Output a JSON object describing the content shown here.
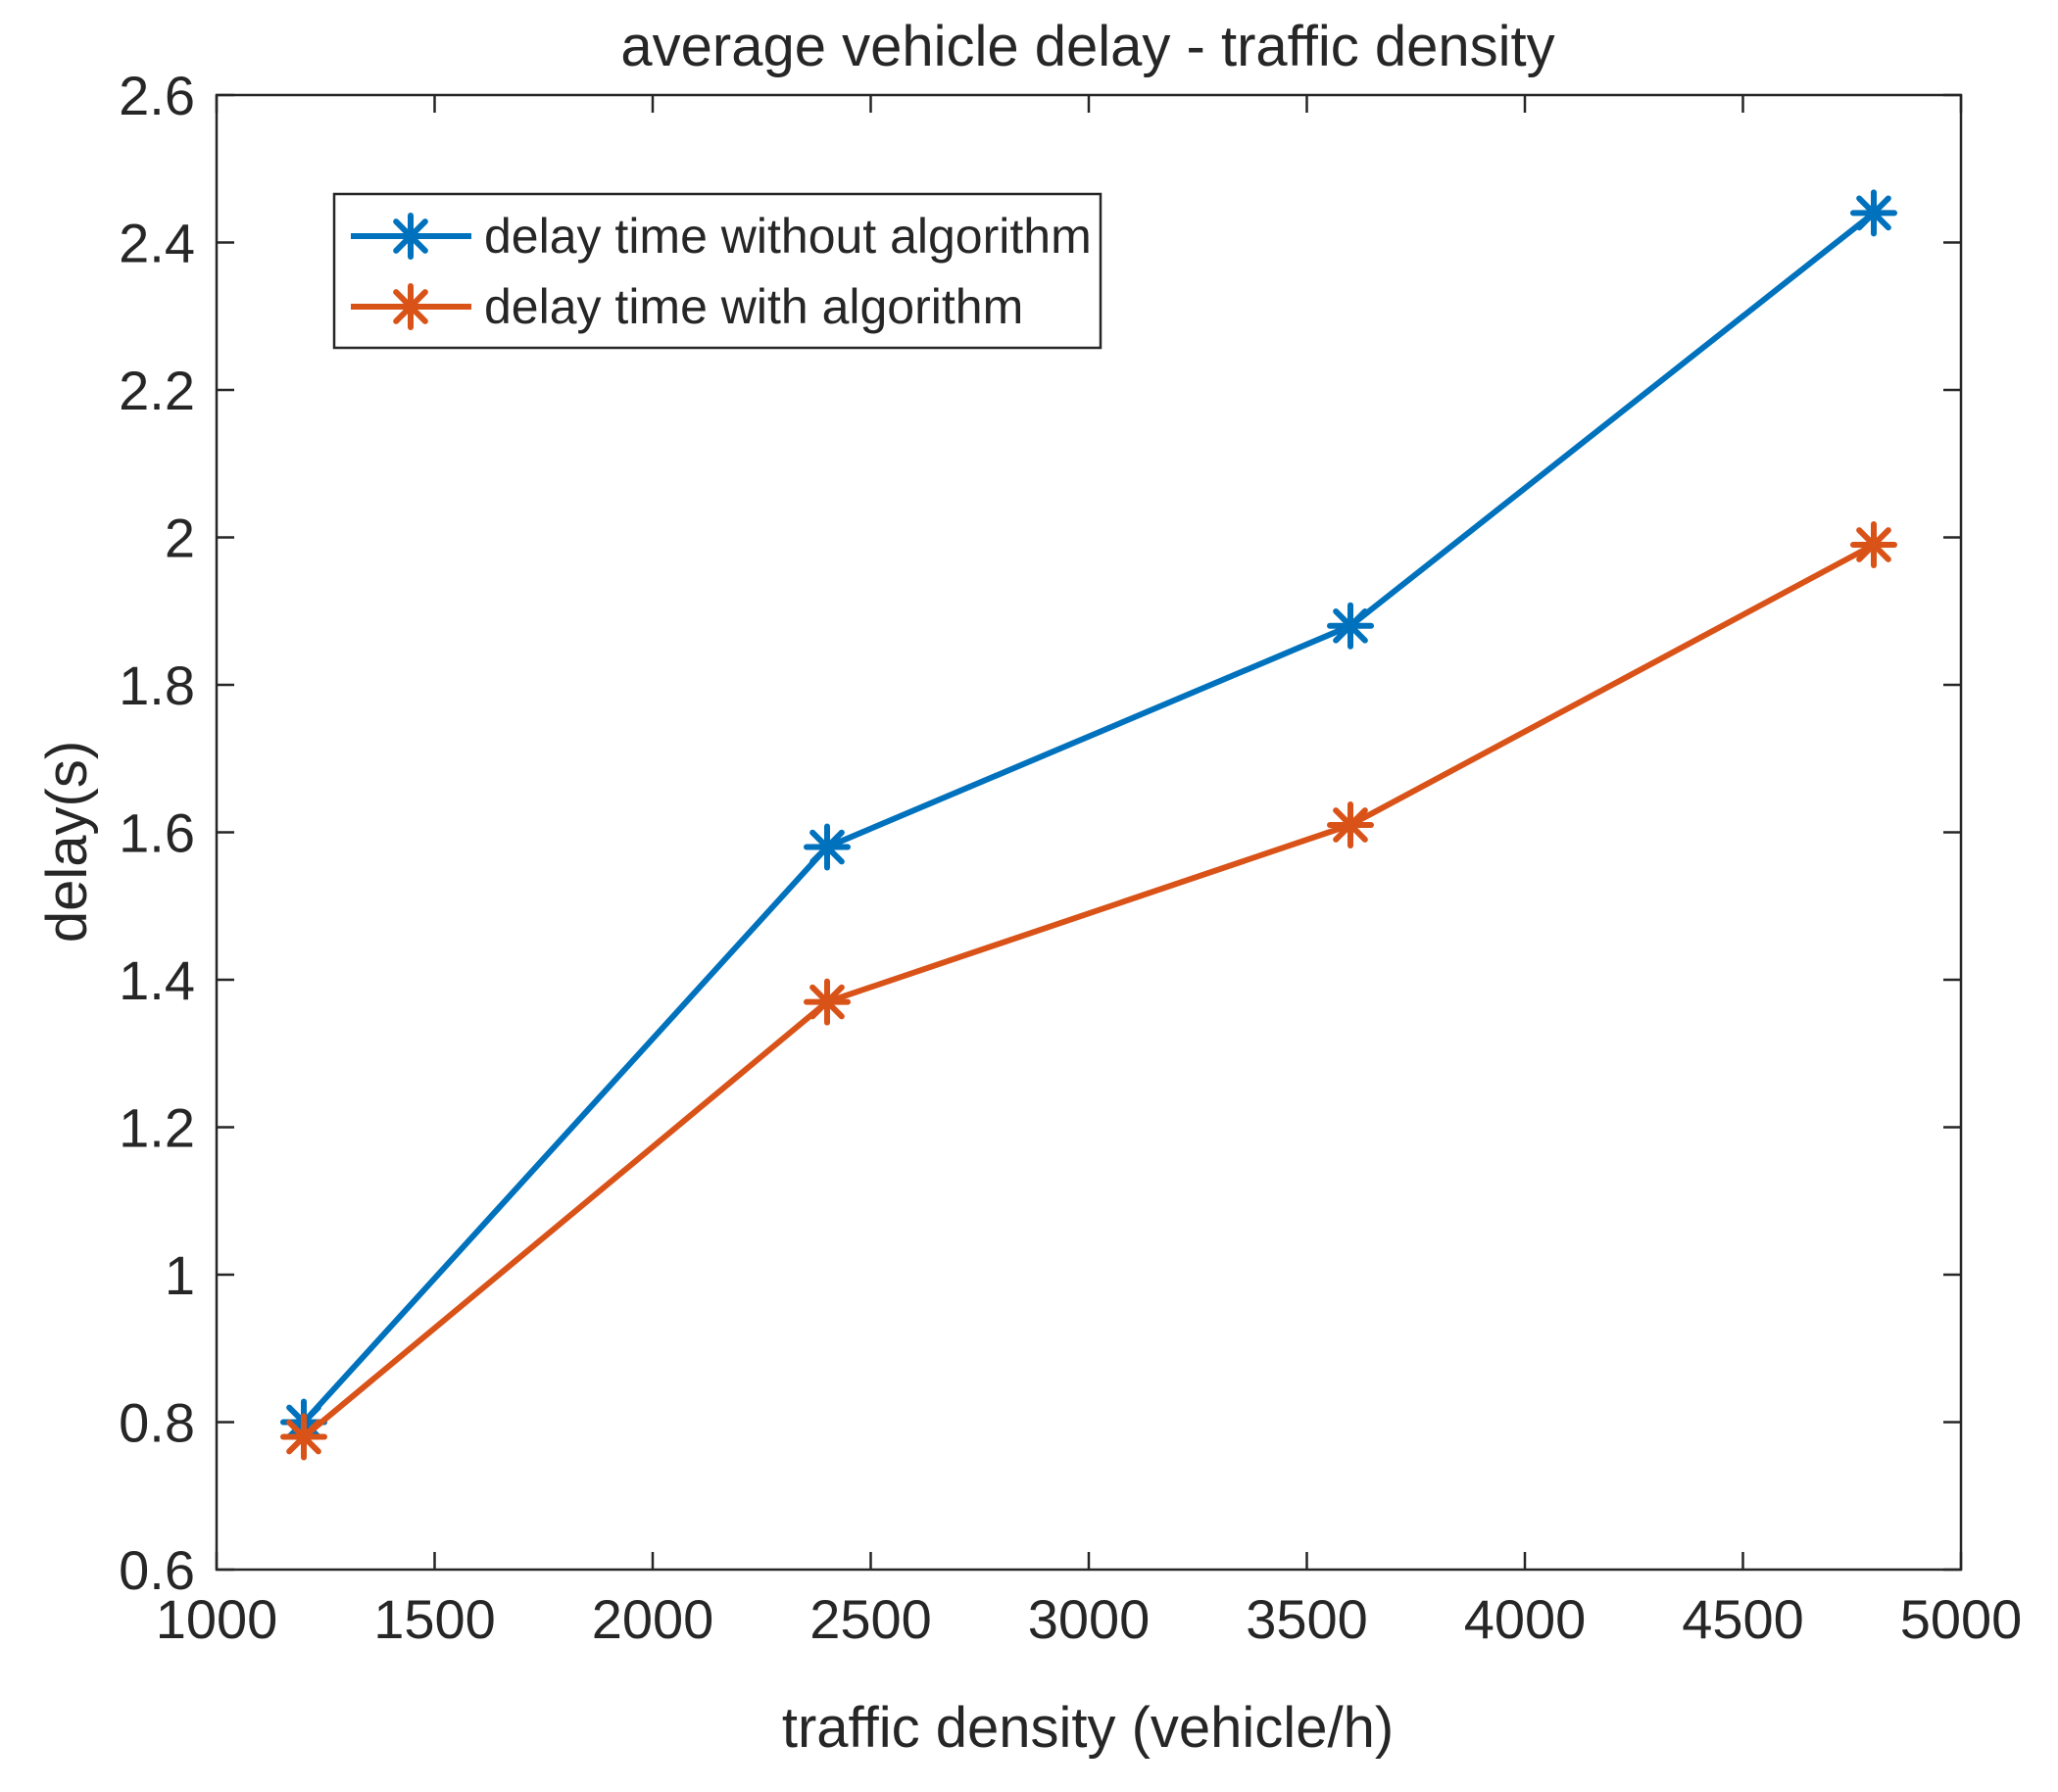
{
  "chart_data": {
    "type": "line",
    "title": "average vehicle delay - traffic density",
    "xlabel": "traffic density (vehicle/h)",
    "ylabel": "delay(s)",
    "xlim": [
      1000,
      5000
    ],
    "ylim": [
      0.6,
      2.6
    ],
    "xticks": [
      1000,
      1500,
      2000,
      2500,
      3000,
      3500,
      4000,
      4500,
      5000
    ],
    "yticks": [
      0.6,
      0.8,
      1,
      1.2,
      1.4,
      1.6,
      1.8,
      2,
      2.2,
      2.4,
      2.6
    ],
    "xtick_labels": [
      "1000",
      "1500",
      "2000",
      "2500",
      "3000",
      "3500",
      "4000",
      "4500",
      "5000"
    ],
    "ytick_labels": [
      "0.6",
      "0.8",
      "1",
      "1.2",
      "1.4",
      "1.6",
      "1.8",
      "2",
      "2.2",
      "2.4",
      "2.6"
    ],
    "grid": false,
    "legend_position": "top-left",
    "x": [
      1200,
      2400,
      3600,
      4800
    ],
    "series": [
      {
        "name": "delay time without algorithm",
        "color": "#0072BD",
        "marker": "asterisk",
        "values": [
          0.8,
          1.58,
          1.88,
          2.44
        ]
      },
      {
        "name": "delay time with algorithm",
        "color": "#D95319",
        "marker": "asterisk",
        "values": [
          0.78,
          1.37,
          1.61,
          1.99
        ]
      }
    ]
  }
}
